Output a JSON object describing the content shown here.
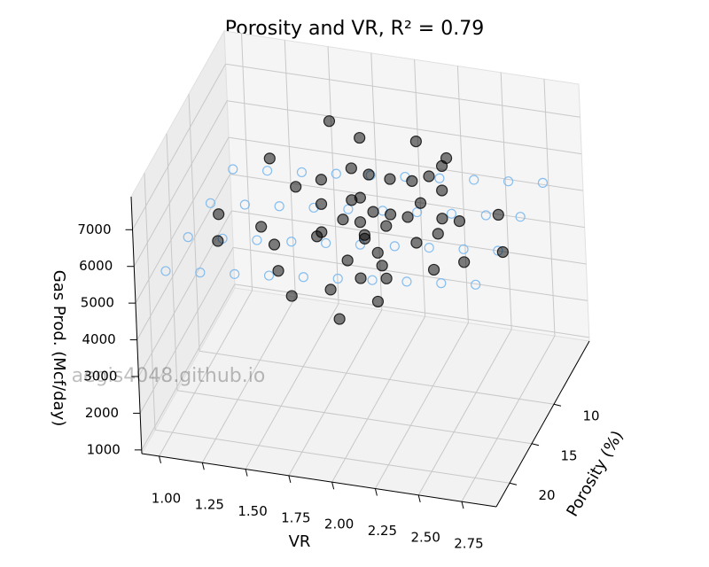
{
  "chart_data": {
    "type": "scatter3d",
    "title": "Porosity and VR, R² = 0.79",
    "watermark": "aegis4048.github.io",
    "xlabel": "VR",
    "ylabel": "Porosity (%)",
    "zlabel": "Gas Prod. (Mcf/day)",
    "xlim": [
      0.9,
      2.95
    ],
    "ylim": [
      2,
      23
    ],
    "zlim": [
      900,
      7900
    ],
    "xticks": [
      {
        "value": 1,
        "label": "1.00"
      },
      {
        "value": 1.25,
        "label": "1.25"
      },
      {
        "value": 1.5,
        "label": "1.50"
      },
      {
        "value": 1.75,
        "label": "1.75"
      },
      {
        "value": 2,
        "label": "2.00"
      },
      {
        "value": 2.25,
        "label": "2.25"
      },
      {
        "value": 2.5,
        "label": "2.50"
      },
      {
        "value": 2.75,
        "label": "2.75"
      }
    ],
    "yticks": [
      10,
      15,
      20
    ],
    "zticks": [
      1000,
      2000,
      3000,
      4000,
      5000,
      6000,
      7000
    ],
    "grid": true,
    "series": [
      {
        "color": "#7ab8f0",
        "marker": "open",
        "x": [
          1.0,
          1.2,
          1.4,
          1.6,
          1.8,
          2.0,
          2.2,
          2.4,
          2.6,
          2.8,
          1.0,
          1.2,
          1.4,
          1.6,
          1.8,
          2.0,
          2.2,
          2.4,
          2.6,
          2.8,
          1.0,
          1.2,
          1.4,
          1.6,
          1.8,
          2.0,
          2.2,
          2.4,
          2.6,
          2.8,
          1.0,
          1.2,
          1.4,
          1.6,
          1.8,
          2.0,
          2.2,
          2.4,
          2.6,
          2.8
        ],
        "y": [
          5,
          5,
          5,
          5,
          5,
          5,
          5,
          5,
          5,
          5,
          10,
          10,
          10,
          10,
          10,
          10,
          10,
          10,
          10,
          10,
          15,
          15,
          15,
          15,
          15,
          15,
          15,
          15,
          15,
          15,
          20,
          20,
          20,
          20,
          20,
          20,
          20,
          20,
          20,
          20
        ],
        "z": [
          4850,
          4950,
          5050,
          5150,
          5250,
          5350,
          5450,
          5550,
          5650,
          5750,
          5000,
          5100,
          5200,
          5300,
          5400,
          5500,
          5600,
          5700,
          5800,
          5900,
          5150,
          5250,
          5350,
          5450,
          5550,
          5650,
          5750,
          5850,
          5950,
          6050,
          5300,
          5400,
          5500,
          5600,
          5700,
          5800,
          5900,
          6000,
          6100,
          6200
        ]
      },
      {
        "color": "#000000",
        "marker": "filled",
        "x": [
          1.1,
          1.2,
          1.3,
          1.4,
          1.5,
          1.6,
          1.7,
          1.75,
          1.8,
          1.85,
          1.9,
          1.95,
          2.0,
          2.0,
          2.05,
          2.1,
          2.1,
          2.15,
          2.2,
          2.2,
          2.25,
          2.3,
          2.35,
          2.4,
          2.45,
          2.5,
          2.6,
          2.7,
          2.8,
          1.6,
          1.7,
          1.8,
          1.9,
          2.0,
          2.1,
          2.2,
          2.3,
          1.5,
          1.65,
          1.95,
          2.05,
          2.25,
          2.4,
          1.85,
          2.15,
          2.0,
          1.9,
          2.1,
          2.3,
          1.75
        ],
        "y": [
          12,
          16,
          8,
          14,
          10,
          18,
          12,
          15,
          9,
          13,
          11,
          16,
          12,
          14,
          10,
          15,
          13,
          9,
          17,
          12,
          11,
          14,
          10,
          13,
          16,
          12,
          15,
          11,
          14,
          6,
          19,
          7,
          18,
          20,
          6,
          19,
          8,
          15,
          10,
          13,
          17,
          9,
          12,
          11,
          16,
          14,
          9,
          12,
          7,
          14
        ],
        "z": [
          5200,
          5400,
          6000,
          5500,
          5800,
          5300,
          5900,
          5700,
          6300,
          5800,
          6000,
          5400,
          5900,
          5600,
          6400,
          5500,
          5800,
          6200,
          5300,
          5900,
          6100,
          5700,
          6300,
          5800,
          5500,
          6000,
          5600,
          6100,
          5800,
          6800,
          4900,
          6700,
          5000,
          4700,
          6600,
          5100,
          6500,
          5300,
          6100,
          5800,
          5200,
          6400,
          6000,
          5900,
          5400,
          5700,
          6200,
          5900,
          6500,
          5600
        ]
      }
    ]
  }
}
